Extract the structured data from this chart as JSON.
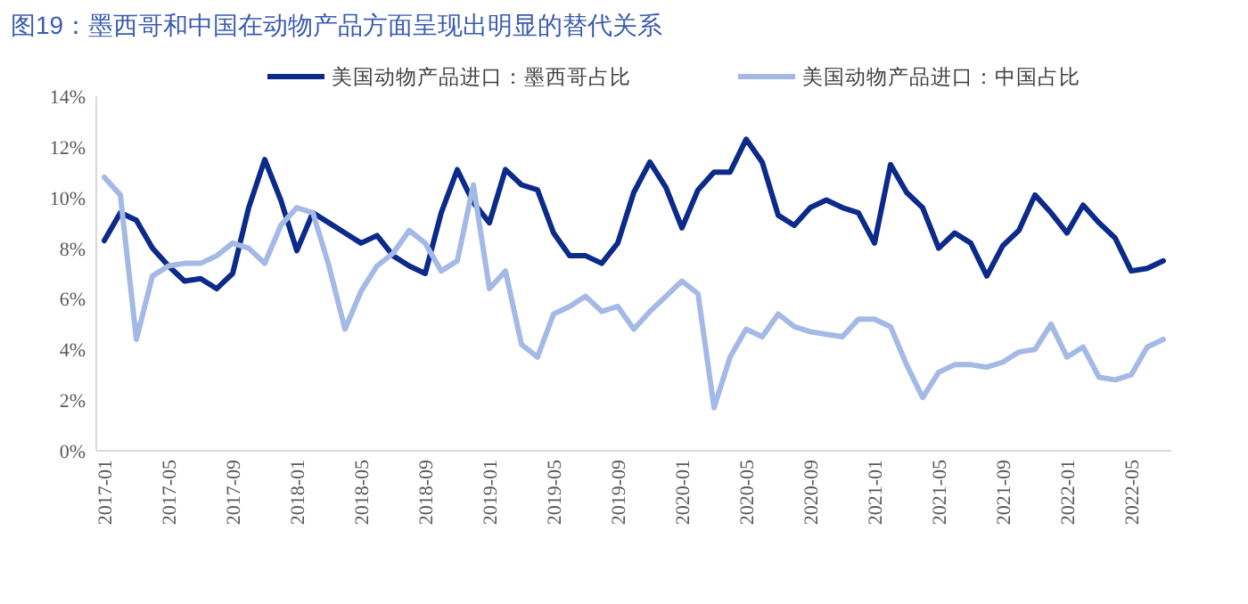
{
  "chart_data": {
    "type": "line",
    "title": "图19：墨西哥和中国在动物产品方面呈现出明显的替代关系",
    "categories": [
      "2017-01",
      null,
      null,
      null,
      "2017-05",
      null,
      null,
      null,
      "2017-09",
      null,
      null,
      null,
      "2018-01",
      null,
      null,
      null,
      "2018-05",
      null,
      null,
      null,
      "2018-09",
      null,
      null,
      null,
      "2019-01",
      null,
      null,
      null,
      "2019-05",
      null,
      null,
      null,
      "2019-09",
      null,
      null,
      null,
      "2020-01",
      null,
      null,
      null,
      "2020-05",
      null,
      null,
      null,
      "2020-09",
      null,
      null,
      null,
      "2021-01",
      null,
      null,
      null,
      "2021-05",
      null,
      null,
      null,
      "2021-09",
      null,
      null,
      null,
      "2022-01",
      null,
      null,
      null,
      "2022-05",
      null,
      null
    ],
    "series": [
      {
        "name": "美国动物产品进口：墨西哥占比",
        "color": "#0b2a8a",
        "values": [
          8.3,
          9.4,
          9.1,
          8.0,
          7.3,
          6.7,
          6.8,
          6.4,
          7.0,
          9.6,
          11.5,
          9.9,
          7.9,
          9.4,
          9.0,
          8.6,
          8.2,
          8.5,
          7.7,
          7.3,
          7.0,
          9.4,
          11.1,
          9.8,
          9.0,
          11.1,
          10.5,
          10.3,
          8.6,
          7.7,
          7.7,
          7.4,
          8.2,
          10.2,
          11.4,
          10.4,
          8.8,
          10.3,
          11.0,
          11.0,
          12.3,
          11.4,
          9.3,
          8.9,
          9.6,
          9.9,
          9.6,
          9.4,
          8.2,
          11.3,
          10.2,
          9.6,
          8.0,
          8.6,
          8.2,
          6.9,
          8.1,
          8.7,
          10.1,
          9.4,
          8.6,
          9.7,
          9.0,
          8.4,
          7.1,
          7.2,
          7.5
        ]
      },
      {
        "name": "美国动物产品进口：中国占比",
        "color": "#a4b9e6",
        "values": [
          10.8,
          10.1,
          4.4,
          6.9,
          7.3,
          7.4,
          7.4,
          7.7,
          8.2,
          8.0,
          7.4,
          8.9,
          9.6,
          9.4,
          7.3,
          4.8,
          6.3,
          7.3,
          7.8,
          8.7,
          8.2,
          7.1,
          7.5,
          10.5,
          6.4,
          7.1,
          4.2,
          3.7,
          5.4,
          5.7,
          6.1,
          5.5,
          5.7,
          4.8,
          5.5,
          6.1,
          6.7,
          6.2,
          1.7,
          3.7,
          4.8,
          4.5,
          5.4,
          4.9,
          4.7,
          4.6,
          4.5,
          5.2,
          5.2,
          4.9,
          3.4,
          2.1,
          3.1,
          3.4,
          3.4,
          3.3,
          3.5,
          3.9,
          4.0,
          5.0,
          3.7,
          4.1,
          2.9,
          2.8,
          3.0,
          4.1,
          4.4
        ]
      }
    ],
    "ylim": [
      0,
      14
    ],
    "yticks": [
      {
        "value": 0,
        "label": "0%"
      },
      {
        "value": 2,
        "label": "2%"
      },
      {
        "value": 4,
        "label": "4%"
      },
      {
        "value": 6,
        "label": "6%"
      },
      {
        "value": 8,
        "label": "8%"
      },
      {
        "value": 10,
        "label": "10%"
      },
      {
        "value": 12,
        "label": "12%"
      },
      {
        "value": 14,
        "label": "14%"
      }
    ],
    "grid": false,
    "legend": "top",
    "marker": "none",
    "line_style": "solid"
  }
}
